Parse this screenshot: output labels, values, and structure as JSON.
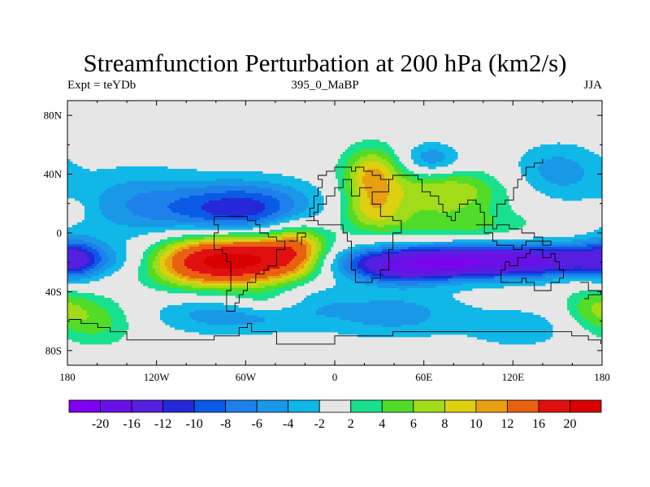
{
  "chart_data": {
    "type": "heatmap",
    "title": "Streamfunction Perturbation at 200 hPa (km2/s)",
    "subtitle_left": "Expt = teYDb",
    "subtitle_center": "395_0_MaBP",
    "subtitle_right": "JJA",
    "x_range": [
      -180,
      180
    ],
    "y_range": [
      -90,
      90
    ],
    "x_ticks": [
      {
        "value": -180,
        "label": "180"
      },
      {
        "value": -120,
        "label": "120W"
      },
      {
        "value": -60,
        "label": "60W"
      },
      {
        "value": 0,
        "label": "0"
      },
      {
        "value": 60,
        "label": "60E"
      },
      {
        "value": 120,
        "label": "120E"
      },
      {
        "value": 180,
        "label": "180"
      }
    ],
    "y_ticks": [
      {
        "value": 80,
        "label": "80N"
      },
      {
        "value": 40,
        "label": "40N"
      },
      {
        "value": 0,
        "label": "0"
      },
      {
        "value": -40,
        "label": "40S"
      },
      {
        "value": -80,
        "label": "80S"
      }
    ],
    "contour_levels": [
      -20,
      -16,
      -12,
      -10,
      -8,
      -6,
      -4,
      -2,
      2,
      4,
      6,
      8,
      10,
      12,
      16,
      20
    ],
    "colorbar_labels": [
      "-20",
      "-16",
      "-12",
      "-10",
      "-8",
      "-6",
      "-4",
      "-2",
      "2",
      "4",
      "6",
      "8",
      "10",
      "12",
      "16",
      "20"
    ],
    "colors": [
      "#7f00f0",
      "#6a10e6",
      "#5520e0",
      "#2428d8",
      "#0a5ae6",
      "#1e80ea",
      "#1a98e8",
      "#10b8e8",
      "#e6e6e6",
      "#18e08c",
      "#50dc28",
      "#a0dc18",
      "#dcd010",
      "#e8a010",
      "#e86010",
      "#e01010",
      "#d80000"
    ],
    "field_features": [
      {
        "lon": -60,
        "lat": -18,
        "amp": 21,
        "sx": 32,
        "sy": 13
      },
      {
        "lon": -100,
        "lat": -20,
        "amp": 8,
        "sx": 22,
        "sy": 12
      },
      {
        "lon": -25,
        "lat": -10,
        "amp": 8,
        "sx": 14,
        "sy": 14
      },
      {
        "lon": -62,
        "lat": 15,
        "amp": -12,
        "sx": 36,
        "sy": 14
      },
      {
        "lon": -135,
        "lat": 20,
        "amp": -5,
        "sx": 30,
        "sy": 18
      },
      {
        "lon": -70,
        "lat": -55,
        "amp": -5.5,
        "sx": 40,
        "sy": 10
      },
      {
        "lon": -175,
        "lat": -18,
        "amp": -5.5,
        "sx": 12,
        "sy": 12
      },
      {
        "lon": -20,
        "lat": -40,
        "amp": -3,
        "sx": 20,
        "sy": 10
      },
      {
        "lon": 25,
        "lat": 40,
        "amp": 10,
        "sx": 14,
        "sy": 13
      },
      {
        "lon": 25,
        "lat": 15,
        "amp": 7,
        "sx": 16,
        "sy": 10
      },
      {
        "lon": 75,
        "lat": 28,
        "amp": 8,
        "sx": 28,
        "sy": 11
      },
      {
        "lon": 80,
        "lat": 5,
        "amp": 4.5,
        "sx": 40,
        "sy": 8
      },
      {
        "lon": 65,
        "lat": -20,
        "amp": -18,
        "sx": 48,
        "sy": 8
      },
      {
        "lon": 150,
        "lat": -18,
        "amp": -12,
        "sx": 44,
        "sy": 8
      },
      {
        "lon": 45,
        "lat": -28,
        "amp": -4,
        "sx": 20,
        "sy": 6
      },
      {
        "lon": 65,
        "lat": 50,
        "amp": -6,
        "sx": 14,
        "sy": 8
      },
      {
        "lon": 150,
        "lat": 42,
        "amp": -5,
        "sx": 22,
        "sy": 14
      },
      {
        "lon": -45,
        "lat": -47,
        "amp": 4,
        "sx": 18,
        "sy": 6
      },
      {
        "lon": -160,
        "lat": -60,
        "amp": 5,
        "sx": 20,
        "sy": 12
      },
      {
        "lon": -180,
        "lat": 15,
        "amp": 3,
        "sx": 8,
        "sy": 5
      },
      {
        "lon": 40,
        "lat": -55,
        "amp": -5,
        "sx": 35,
        "sy": 12
      },
      {
        "lon": 125,
        "lat": -65,
        "amp": -3.5,
        "sx": 25,
        "sy": 10
      },
      {
        "lon": 175,
        "lat": -50,
        "amp": 5,
        "sx": 15,
        "sy": 10
      }
    ],
    "coastlines": [
      [
        [
          -10,
          40
        ],
        [
          -5,
          42
        ],
        [
          0,
          45
        ],
        [
          5,
          45
        ],
        [
          10,
          42
        ],
        [
          15,
          44
        ],
        [
          20,
          42
        ],
        [
          25,
          40
        ],
        [
          30,
          37
        ],
        [
          35,
          35
        ],
        [
          35,
          28
        ],
        [
          30,
          28
        ],
        [
          25,
          20
        ],
        [
          30,
          12
        ],
        [
          35,
          12
        ],
        [
          40,
          8
        ],
        [
          45,
          5
        ],
        [
          45,
          0
        ],
        [
          40,
          -5
        ],
        [
          40,
          -10
        ],
        [
          35,
          -15
        ],
        [
          35,
          -25
        ],
        [
          30,
          -30
        ],
        [
          25,
          -35
        ],
        [
          20,
          -35
        ],
        [
          15,
          -25
        ],
        [
          12,
          -15
        ],
        [
          10,
          -5
        ],
        [
          8,
          0
        ],
        [
          5,
          5
        ],
        [
          -5,
          5
        ],
        [
          -10,
          8
        ],
        [
          -15,
          12
        ],
        [
          -17,
          18
        ],
        [
          -15,
          25
        ],
        [
          -10,
          30
        ],
        [
          -8,
          35
        ],
        [
          -10,
          40
        ]
      ],
      [
        [
          35,
          35
        ],
        [
          40,
          40
        ],
        [
          45,
          40
        ],
        [
          50,
          38
        ],
        [
          55,
          36
        ],
        [
          60,
          28
        ],
        [
          65,
          25
        ],
        [
          70,
          20
        ],
        [
          72,
          15
        ],
        [
          75,
          10
        ],
        [
          78,
          8
        ],
        [
          80,
          15
        ],
        [
          85,
          20
        ],
        [
          90,
          22
        ],
        [
          95,
          20
        ],
        [
          98,
          15
        ],
        [
          100,
          10
        ],
        [
          102,
          5
        ],
        [
          105,
          10
        ],
        [
          108,
          15
        ],
        [
          110,
          20
        ],
        [
          115,
          22
        ],
        [
          120,
          25
        ],
        [
          120,
          30
        ],
        [
          122,
          35
        ],
        [
          125,
          40
        ],
        [
          130,
          45
        ],
        [
          135,
          48
        ],
        [
          140,
          50
        ]
      ],
      [
        [
          -80,
          10
        ],
        [
          -75,
          12
        ],
        [
          -70,
          12
        ],
        [
          -65,
          10
        ],
        [
          -60,
          8
        ],
        [
          -52,
          5
        ],
        [
          -50,
          0
        ],
        [
          -45,
          -2
        ],
        [
          -38,
          -5
        ],
        [
          -35,
          -10
        ],
        [
          -38,
          -15
        ],
        [
          -40,
          -22
        ],
        [
          -45,
          -24
        ],
        [
          -48,
          -28
        ],
        [
          -52,
          -33
        ],
        [
          -58,
          -38
        ],
        [
          -63,
          -42
        ],
        [
          -65,
          -48
        ],
        [
          -68,
          -52
        ],
        [
          -72,
          -52
        ],
        [
          -74,
          -45
        ],
        [
          -73,
          -38
        ],
        [
          -71,
          -30
        ],
        [
          -70,
          -20
        ],
        [
          -72,
          -15
        ],
        [
          -76,
          -12
        ],
        [
          -80,
          -5
        ],
        [
          -80,
          0
        ],
        [
          -78,
          5
        ],
        [
          -80,
          10
        ]
      ],
      [
        [
          115,
          -20
        ],
        [
          118,
          -22
        ],
        [
          122,
          -18
        ],
        [
          128,
          -15
        ],
        [
          132,
          -12
        ],
        [
          137,
          -12
        ],
        [
          140,
          -17
        ],
        [
          145,
          -15
        ],
        [
          148,
          -20
        ],
        [
          152,
          -25
        ],
        [
          153,
          -30
        ],
        [
          150,
          -35
        ],
        [
          145,
          -38
        ],
        [
          140,
          -38
        ],
        [
          135,
          -35
        ],
        [
          130,
          -32
        ],
        [
          125,
          -33
        ],
        [
          118,
          -35
        ],
        [
          115,
          -33
        ],
        [
          113,
          -25
        ],
        [
          115,
          -20
        ]
      ],
      [
        [
          95,
          5
        ],
        [
          100,
          0
        ],
        [
          105,
          -5
        ],
        [
          110,
          -8
        ],
        [
          115,
          -8
        ],
        [
          120,
          -10
        ],
        [
          125,
          -8
        ],
        [
          130,
          -5
        ],
        [
          135,
          -5
        ],
        [
          140,
          -8
        ],
        [
          145,
          -5
        ],
        [
          140,
          -2
        ],
        [
          135,
          0
        ],
        [
          125,
          2
        ],
        [
          118,
          5
        ],
        [
          110,
          2
        ],
        [
          105,
          5
        ],
        [
          100,
          5
        ],
        [
          95,
          5
        ]
      ],
      [
        [
          -180,
          -60
        ],
        [
          -175,
          -58
        ],
        [
          -170,
          -62
        ],
        [
          -160,
          -65
        ],
        [
          -150,
          -68
        ],
        [
          -140,
          -72
        ],
        [
          -120,
          -73
        ],
        [
          -100,
          -72
        ],
        [
          -80,
          -70
        ],
        [
          -65,
          -65
        ],
        [
          -60,
          -63
        ],
        [
          -55,
          -68
        ],
        [
          -40,
          -75
        ],
        [
          -20,
          -75
        ],
        [
          0,
          -70
        ],
        [
          20,
          -70
        ],
        [
          40,
          -68
        ],
        [
          60,
          -68
        ],
        [
          80,
          -66
        ],
        [
          100,
          -66
        ],
        [
          120,
          -66
        ],
        [
          140,
          -66
        ],
        [
          160,
          -70
        ],
        [
          170,
          -72
        ],
        [
          180,
          -75
        ]
      ],
      [
        [
          -30,
          -5
        ],
        [
          -25,
          0
        ],
        [
          -20,
          -3
        ],
        [
          -22,
          -8
        ]
      ],
      [
        [
          165,
          -35
        ],
        [
          172,
          -38
        ],
        [
          178,
          -42
        ],
        [
          172,
          -46
        ],
        [
          167,
          -44
        ]
      ],
      [
        [
          -20,
          8
        ],
        [
          -15,
          15
        ],
        [
          -10,
          20
        ],
        [
          -5,
          25
        ],
        [
          0,
          30
        ],
        [
          5,
          36
        ],
        [
          10,
          36
        ],
        [
          10,
          30
        ],
        [
          12,
          25
        ],
        [
          18,
          32
        ],
        [
          25,
          32
        ]
      ]
    ]
  }
}
